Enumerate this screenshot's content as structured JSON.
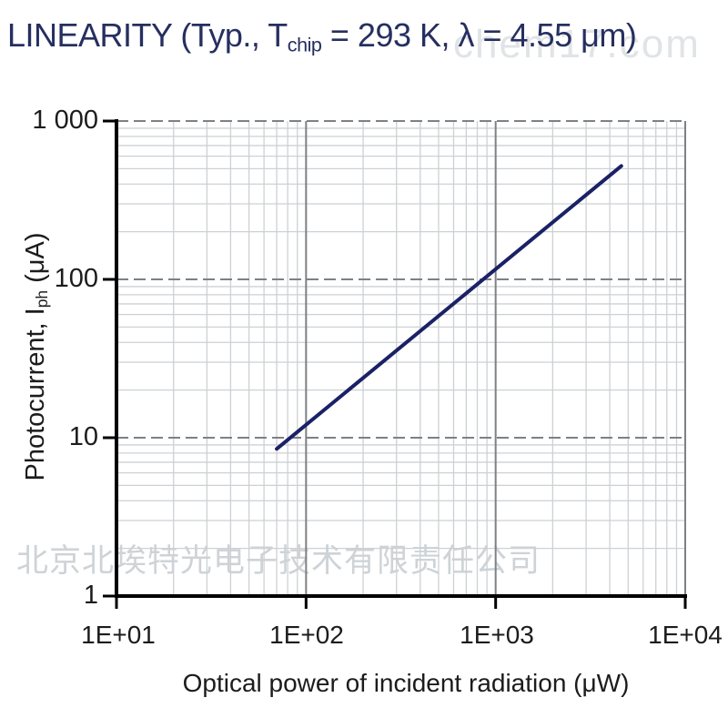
{
  "title": {
    "prefix": "LINEARITY (Typ., T",
    "subscript": "chip",
    "suffix": " = 293 K, λ = 4.55 μm)"
  },
  "watermarks": {
    "site": "chem17.com",
    "company": "北京北埃特光电子技术有限责任公司"
  },
  "ylabel_parts": {
    "prefix": "Photocurrent, I",
    "subscript": "ph",
    "suffix": " (μA)"
  },
  "chart_data": {
    "type": "line",
    "title": "LINEARITY (Typ., Tchip = 293 K, λ = 4.55 μm)",
    "xlabel": "Optical power of incident radiation (μW)",
    "ylabel": "Photocurrent, Iph (μA)",
    "x_scale": "log",
    "y_scale": "log",
    "xlim": [
      10,
      10000
    ],
    "ylim": [
      1,
      1000
    ],
    "x_ticks": [
      "1E+01",
      "1E+02",
      "1E+03",
      "1E+04"
    ],
    "y_ticks": [
      "1 000",
      "100",
      "10",
      "1"
    ],
    "grid": "log major + minor, horizontal majors dashed",
    "legend": "none",
    "series": [
      {
        "name": "photocurrent-vs-optical-power",
        "color": "#1b2166",
        "points": [
          [
            70,
            8.5
          ],
          [
            4600,
            520
          ]
        ]
      }
    ],
    "colors": {
      "axis": "#000000",
      "grid_major": "#7c8185",
      "grid_minor": "#cdd1d4",
      "title_text": "#262f60",
      "tick_text": "#1c1c1c"
    }
  }
}
